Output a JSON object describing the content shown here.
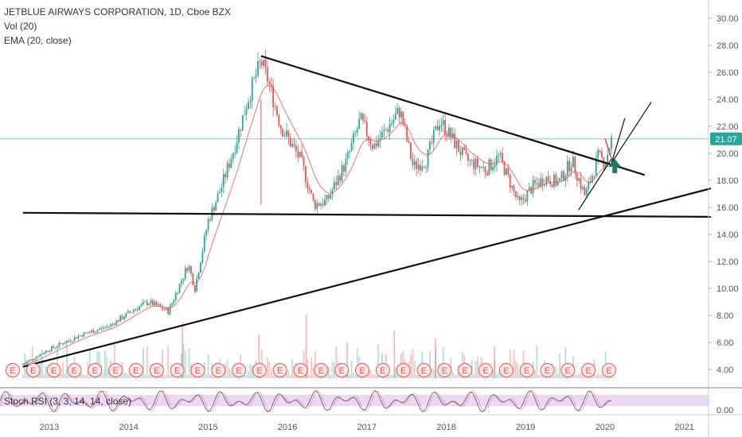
{
  "legend": {
    "title": "JETBLUE AIRWAYS CORPORATION, 1D, Cboe BZX",
    "volume": "Vol (20)",
    "ema": "EMA (20, close)"
  },
  "indicator": {
    "label": "Stoch RSI (3, 3, 14, 14, close)"
  },
  "colors": {
    "up": "#26a69a",
    "down": "#ef5350",
    "trendline": "#111111",
    "price_line": "#26a69a",
    "rsi_fill": "#e1c8f0",
    "arrow": "#1f7a6a",
    "axis_text": "#555555"
  },
  "chart_data": {
    "type": "candlestick",
    "price_axis": {
      "ticks": [
        "30.00",
        "28.00",
        "26.00",
        "24.00",
        "22.00",
        "20.00",
        "18.00",
        "16.00",
        "14.00",
        "12.00",
        "10.00",
        "8.00",
        "6.00",
        "4.00"
      ],
      "range": [
        3.0,
        31.0
      ]
    },
    "time_axis": {
      "ticks": [
        "2013",
        "2014",
        "2015",
        "2016",
        "2017",
        "2018",
        "2019",
        "2020",
        "2021"
      ]
    },
    "last_price": "21.07",
    "price_path": [
      [
        "2012-09",
        4.4
      ],
      [
        "2013-01",
        5.5
      ],
      [
        "2013-06",
        6.6
      ],
      [
        "2013-10",
        7.2
      ],
      [
        "2014-02",
        8.5
      ],
      [
        "2014-04",
        9.0
      ],
      [
        "2014-07",
        8.3
      ],
      [
        "2014-10",
        11.8
      ],
      [
        "2014-11",
        10.0
      ],
      [
        "2015-01",
        15.0
      ],
      [
        "2015-03",
        17.5
      ],
      [
        "2015-05",
        20.5
      ],
      [
        "2015-07",
        24.0
      ],
      [
        "2015-09",
        26.8
      ],
      [
        "2015-10",
        25.5
      ],
      [
        "2015-12",
        22.0
      ],
      [
        "2016-03",
        19.5
      ],
      [
        "2016-05",
        16.2
      ],
      [
        "2016-07",
        16.5
      ],
      [
        "2016-10",
        19.5
      ],
      [
        "2016-12",
        22.5
      ],
      [
        "2017-02",
        20.5
      ],
      [
        "2017-04",
        21.8
      ],
      [
        "2017-06",
        23.2
      ],
      [
        "2017-08",
        19.0
      ],
      [
        "2017-10",
        19.5
      ],
      [
        "2017-12",
        22.5
      ],
      [
        "2018-02",
        21.0
      ],
      [
        "2018-04",
        19.5
      ],
      [
        "2018-07",
        18.8
      ],
      [
        "2018-09",
        19.8
      ],
      [
        "2018-12",
        16.2
      ],
      [
        "2019-02",
        17.5
      ],
      [
        "2019-04",
        18.2
      ],
      [
        "2019-06",
        17.8
      ],
      [
        "2019-08",
        19.5
      ],
      [
        "2019-10",
        16.8
      ],
      [
        "2019-12",
        19.8
      ],
      [
        "2020-01",
        19.3
      ],
      [
        "2020-02",
        21.07
      ]
    ],
    "trendlines": [
      {
        "name": "descending-resistance",
        "from": [
          "2015-09",
          27.2
        ],
        "to": [
          "2020-07",
          18.4
        ]
      },
      {
        "name": "horizontal-support",
        "from": [
          "2012-09",
          15.6
        ],
        "to": [
          "2021-05",
          15.3
        ]
      },
      {
        "name": "long-term-rising-support",
        "from": [
          "2012-09",
          4.2
        ],
        "to": [
          "2021-05",
          17.4
        ]
      },
      {
        "name": "short-rising-support",
        "from": [
          "2019-09",
          15.8
        ],
        "to": [
          "2020-02",
          19.6
        ]
      }
    ],
    "projections": [
      {
        "name": "projection-steep",
        "from": [
          "2020-02",
          19.3
        ],
        "to": [
          "2020-04",
          22.6
        ]
      },
      {
        "name": "projection-channel",
        "from": [
          "2020-02",
          19.3
        ],
        "to": [
          "2020-08",
          23.8
        ]
      },
      {
        "name": "projection-red",
        "from": [
          "2020-02",
          19.6
        ],
        "to": [
          "2020-01",
          21.1
        ]
      }
    ],
    "earnings_markers": {
      "label": "E",
      "count": 30
    },
    "stoch_rsi": {
      "axis_label": "0.00"
    }
  }
}
